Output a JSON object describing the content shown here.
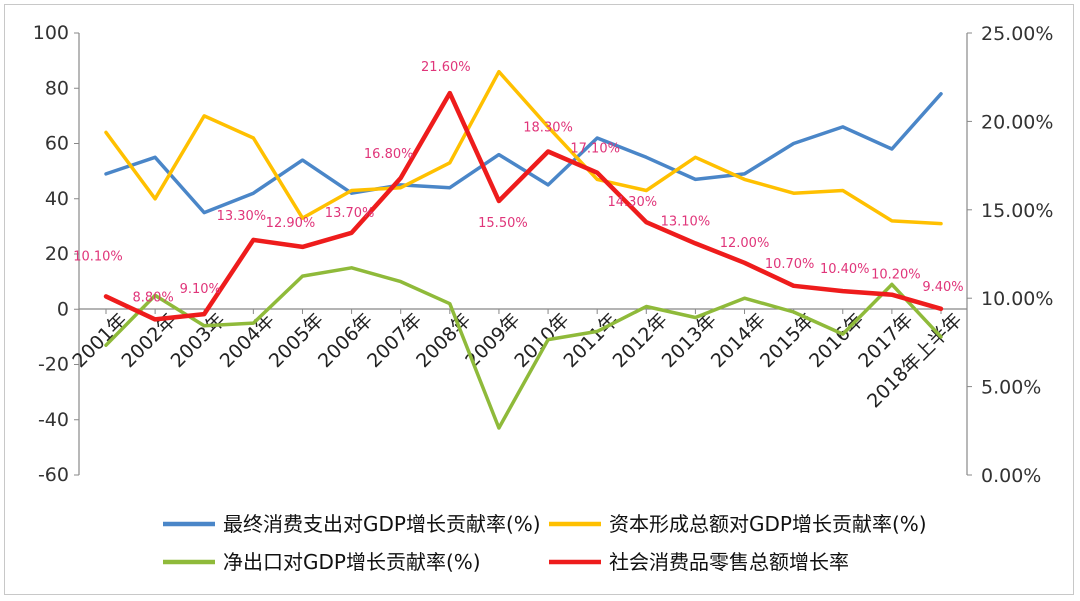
{
  "chart_data": {
    "type": "line",
    "categories": [
      "2001年",
      "2002年",
      "2003年",
      "2004年",
      "2005年",
      "2006年",
      "2007年",
      "2008年",
      "2009年",
      "2010年",
      "2011年",
      "2012年",
      "2013年",
      "2014年",
      "2015年",
      "2016年",
      "2017年",
      "2018年上半年"
    ],
    "ylim": [
      -60,
      100
    ],
    "yticks": [
      "100",
      "80",
      "60",
      "40",
      "20",
      "0",
      "-20",
      "-40",
      "-60"
    ],
    "y2lim": [
      0,
      25
    ],
    "y2ticks": [
      "25.00%",
      "20.00%",
      "15.00%",
      "10.00%",
      "5.00%",
      "0.00%"
    ],
    "series": [
      {
        "name": "最终消费支出对GDP增长贡献率(%)",
        "axis": "left",
        "color": "#4a86c8",
        "values": [
          49,
          55,
          35,
          42,
          54,
          42,
          45,
          44,
          56,
          45,
          62,
          55,
          47,
          49,
          60,
          66,
          58,
          78
        ]
      },
      {
        "name": "资本形成总额对GDP增长贡献率(%)",
        "axis": "left",
        "color": "#ffc000",
        "values": [
          64,
          40,
          70,
          62,
          33,
          43,
          44,
          53,
          86,
          66,
          47,
          43,
          55,
          47,
          42,
          43,
          32,
          31
        ]
      },
      {
        "name": "净出口对GDP增长贡献率(%)",
        "axis": "left",
        "color": "#8fba3a",
        "values": [
          -13,
          5,
          -6,
          -5,
          12,
          15,
          10,
          2,
          -43,
          -11,
          -8,
          1,
          -3,
          4,
          -1,
          -9,
          9,
          -10
        ]
      },
      {
        "name": "社会消费品零售总额增长率",
        "axis": "right",
        "color": "#ee1c1c",
        "values": [
          10.1,
          8.8,
          9.1,
          13.3,
          12.9,
          13.7,
          16.8,
          21.6,
          15.5,
          18.3,
          17.1,
          14.3,
          13.1,
          12.0,
          10.7,
          10.4,
          10.2,
          9.4
        ],
        "labels": [
          "10.10%",
          "8.80%",
          "9.10%",
          "13.30%",
          "12.90%",
          "13.70%",
          "16.80%",
          "21.60%",
          "15.50%",
          "18.30%",
          "17.10%",
          "14.30%",
          "13.10%",
          "12.00%",
          "10.70%",
          "10.40%",
          "10.20%",
          "9.40%"
        ]
      }
    ]
  }
}
